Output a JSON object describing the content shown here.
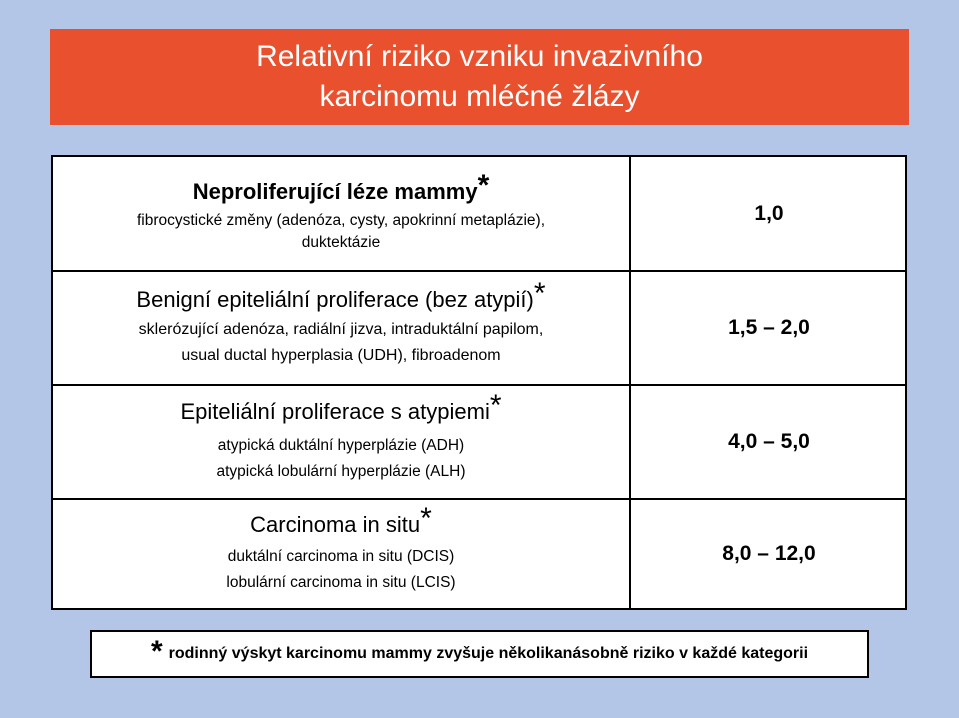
{
  "title": {
    "line1": "Relativní riziko vzniku invazivního",
    "line2": "karcinomu mléčné žlázy"
  },
  "rows": [
    {
      "heading": "Neproliferující léze mammy",
      "heading_mark": "*",
      "details": [
        "fibrocystické změny (adenóza, cysty, apokrinní metaplázie),",
        "duktektázie"
      ],
      "risk": "1,0"
    },
    {
      "heading": "Benigní epiteliální proliferace (bez atypií)",
      "heading_mark": "*",
      "details": [
        "sklerózující adenóza, radiální jizva, intraduktální papilom,",
        "usual ductal hyperplasia (UDH), fibroadenom"
      ],
      "risk": "1,5 – 2,0"
    },
    {
      "heading": "Epiteliální proliferace s atypiemi",
      "heading_mark": "*",
      "details": [
        "atypická duktální hyperplázie (ADH)",
        "atypická lobulární hyperplázie (ALH)"
      ],
      "risk": "4,0 – 5,0"
    },
    {
      "heading": "Carcinoma in situ",
      "heading_mark": "*",
      "details": [
        "duktální carcinoma in situ (DCIS)",
        "lobulární carcinoma in situ (LCIS)"
      ],
      "risk": "8,0 – 12,0"
    }
  ],
  "footnote": {
    "mark": "*",
    "text": "rodinný výskyt karcinomu mammy zvyšuje několikanásobně riziko v každé kategorii"
  },
  "colors": {
    "background": "#b4c6e7",
    "title_banner": "#e8502e",
    "title_text": "#ffffff"
  }
}
